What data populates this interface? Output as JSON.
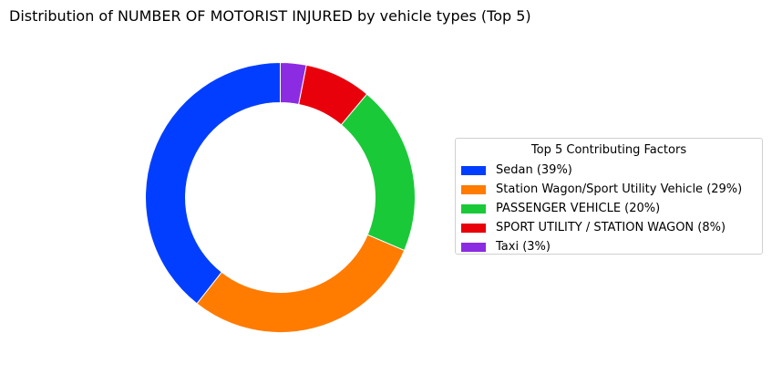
{
  "chart_data": {
    "type": "pie",
    "variant": "donut",
    "title": "Distribution of NUMBER OF MOTORIST INJURED by vehicle types (Top 5)",
    "legend_title": "Top 5 Contributing Factors",
    "legend_position": "right",
    "slices": [
      {
        "label": "Sedan",
        "value": 39.4,
        "legend": "Sedan (39%)",
        "color": "#023eff"
      },
      {
        "label": "Station Wagon/Sport Utility Vehicle",
        "value": 29.2,
        "legend": "Station Wagon/Sport Utility Vehicle (29%)",
        "color": "#ff7c00"
      },
      {
        "label": "PASSENGER VEHICLE",
        "value": 20.3,
        "legend": "PASSENGER VEHICLE (20%)",
        "color": "#1ac938"
      },
      {
        "label": "SPORT UTILITY / STATION WAGON",
        "value": 8.0,
        "legend": "SPORT UTILITY / STATION WAGON (8%)",
        "color": "#e8000b"
      },
      {
        "label": "Taxi",
        "value": 3.1,
        "legend": "Taxi (3%)",
        "color": "#8b2be2"
      }
    ],
    "start_angle_deg": 90,
    "direction": "counterclockwise"
  }
}
